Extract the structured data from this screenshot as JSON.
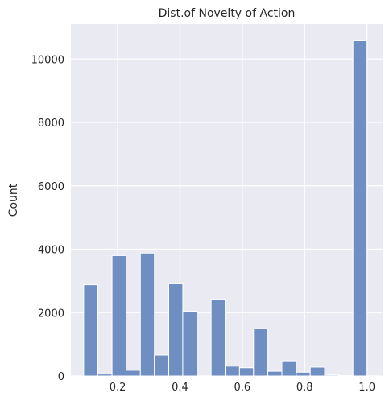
{
  "chart_data": {
    "type": "bar",
    "title": "Dist.of Novelty of Action",
    "xlabel": "",
    "ylabel": "Count",
    "xlim": [
      0.05,
      1.05
    ],
    "ylim": [
      0,
      11100
    ],
    "x_ticks": [
      0.2,
      0.4,
      0.6,
      0.8,
      1.0
    ],
    "x_tick_labels": [
      "0.2",
      "0.4",
      "0.6",
      "0.8",
      "1.0"
    ],
    "y_ticks": [
      0,
      2000,
      4000,
      6000,
      8000,
      10000
    ],
    "y_tick_labels": [
      "0",
      "2000",
      "4000",
      "6000",
      "8000",
      "10000"
    ],
    "grid": true,
    "bar_color": "#6f8ec2",
    "background_color": "#eaeaf2",
    "bins": [
      {
        "x0": 0.091,
        "x1": 0.136,
        "count": 2880
      },
      {
        "x0": 0.136,
        "x1": 0.182,
        "count": 60
      },
      {
        "x0": 0.182,
        "x1": 0.227,
        "count": 3800
      },
      {
        "x0": 0.227,
        "x1": 0.273,
        "count": 180
      },
      {
        "x0": 0.273,
        "x1": 0.318,
        "count": 3880
      },
      {
        "x0": 0.318,
        "x1": 0.364,
        "count": 660
      },
      {
        "x0": 0.364,
        "x1": 0.409,
        "count": 2910
      },
      {
        "x0": 0.409,
        "x1": 0.455,
        "count": 2040
      },
      {
        "x0": 0.455,
        "x1": 0.5,
        "count": 0
      },
      {
        "x0": 0.5,
        "x1": 0.545,
        "count": 2420
      },
      {
        "x0": 0.545,
        "x1": 0.591,
        "count": 310
      },
      {
        "x0": 0.591,
        "x1": 0.636,
        "count": 260
      },
      {
        "x0": 0.636,
        "x1": 0.682,
        "count": 1490
      },
      {
        "x0": 0.682,
        "x1": 0.727,
        "count": 150
      },
      {
        "x0": 0.727,
        "x1": 0.773,
        "count": 480
      },
      {
        "x0": 0.773,
        "x1": 0.818,
        "count": 120
      },
      {
        "x0": 0.818,
        "x1": 0.864,
        "count": 280
      },
      {
        "x0": 0.864,
        "x1": 0.909,
        "count": 30
      },
      {
        "x0": 0.909,
        "x1": 0.955,
        "count": 10
      },
      {
        "x0": 0.955,
        "x1": 1.0,
        "count": 10580
      }
    ]
  }
}
